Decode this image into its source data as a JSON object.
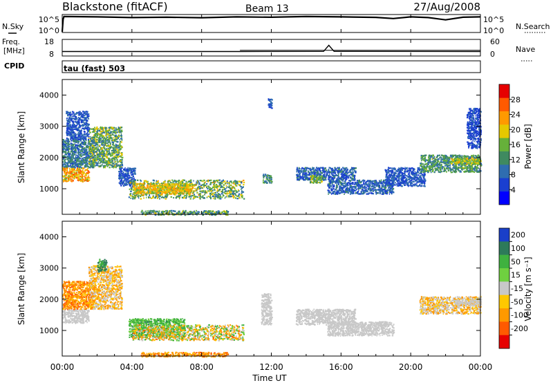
{
  "header": {
    "station": "Blackstone (fitACF)",
    "beam": "Beam 13",
    "date": "27/Aug/2008"
  },
  "top_panels": {
    "nsky_label": "N.Sky",
    "nsearch_label": "N.Search",
    "nsky_ticks": [
      "10^5",
      "10^0"
    ],
    "freq_label_1": "Freq.",
    "freq_label_2": "[MHz]",
    "freq_ticks": [
      "18",
      "8"
    ],
    "nave_label": "Nave",
    "nave_ticks": [
      "60",
      "0"
    ],
    "cpid_label": "CPID",
    "cpid_value": "tau (fast) 503"
  },
  "colors": {
    "power_scale": [
      "#0000ff",
      "#1a3fd0",
      "#2f6db0",
      "#3f8a60",
      "#66b03a",
      "#e6c800",
      "#ff9900",
      "#ff5a00",
      "#e60000"
    ],
    "velocity_scale": [
      "#1a3fc8",
      "#2d7a5a",
      "#3fb13f",
      "#6fd040",
      "#c8c8c8",
      "#ffc800",
      "#ff9900",
      "#ff5a00",
      "#e60000"
    ]
  },
  "chart_data": [
    {
      "type": "line",
      "name": "N.Sky / N.Search",
      "y_ticks": [
        "10^5",
        "10^0"
      ],
      "x": [
        0,
        0.05,
        0.1,
        2,
        4,
        6,
        8,
        10,
        12,
        14,
        16,
        18,
        19,
        20,
        21,
        22,
        23,
        24
      ],
      "values": [
        0.0,
        0.75,
        0.92,
        0.9,
        0.86,
        0.88,
        0.85,
        0.9,
        0.88,
        0.92,
        0.9,
        0.87,
        0.8,
        0.9,
        0.86,
        0.72,
        0.88,
        0.9
      ]
    },
    {
      "type": "line",
      "name": "Freq / Nave",
      "y_ticks_left": [
        "18",
        "8"
      ],
      "y_ticks_right": [
        "60",
        "0"
      ],
      "freq_x": [
        0,
        10,
        10.2,
        15,
        15.3,
        15.6,
        24
      ],
      "freq_mhz": [
        10.5,
        10.5,
        10.5,
        10.6,
        14.6,
        10.6,
        10.5
      ],
      "freq_step_x": [
        10.2,
        24
      ],
      "freq_step_mhz": [
        11.3,
        11.3
      ]
    },
    {
      "type": "heatmap",
      "title": "Power",
      "xlabel": "",
      "ylabel": "Slant Range [km]",
      "x_range_hours": [
        0,
        24
      ],
      "y_range_km": [
        180,
        4500
      ],
      "y_ticks": [
        1000,
        2000,
        3000,
        4000
      ],
      "colorbar_label": "Power [dB]",
      "colorbar_ticks": [
        4,
        8,
        12,
        16,
        20,
        24,
        28
      ],
      "colorbar_range": [
        0,
        32
      ],
      "regions": [
        {
          "t": [
            0.0,
            1.5
          ],
          "r": [
            1250,
            1700
          ],
          "p": [
            16,
            28
          ]
        },
        {
          "t": [
            0.0,
            1.8
          ],
          "r": [
            1700,
            2600
          ],
          "p": [
            6,
            14
          ]
        },
        {
          "t": [
            0.2,
            1.5
          ],
          "r": [
            2600,
            3500
          ],
          "p": [
            4,
            10
          ]
        },
        {
          "t": [
            1.5,
            3.4
          ],
          "r": [
            1700,
            3000
          ],
          "p": [
            8,
            20
          ]
        },
        {
          "t": [
            3.2,
            4.2
          ],
          "r": [
            1100,
            1700
          ],
          "p": [
            4,
            10
          ]
        },
        {
          "t": [
            3.8,
            10.4
          ],
          "r": [
            700,
            1300
          ],
          "p": [
            8,
            22
          ]
        },
        {
          "t": [
            4.0,
            7.5
          ],
          "r": [
            850,
            1200
          ],
          "p": [
            16,
            24
          ]
        },
        {
          "t": [
            4.5,
            9.5
          ],
          "r": [
            180,
            320
          ],
          "p": [
            8,
            20
          ]
        },
        {
          "t": [
            11.5,
            12.0
          ],
          "r": [
            1200,
            1500
          ],
          "p": [
            8,
            16
          ]
        },
        {
          "t": [
            11.8,
            12.0
          ],
          "r": [
            3600,
            3900
          ],
          "p": [
            4,
            10
          ]
        },
        {
          "t": [
            13.4,
            16.8
          ],
          "r": [
            1300,
            1700
          ],
          "p": [
            4,
            12
          ]
        },
        {
          "t": [
            14.2,
            14.9
          ],
          "r": [
            1200,
            1450
          ],
          "p": [
            12,
            20
          ]
        },
        {
          "t": [
            15.2,
            19.0
          ],
          "r": [
            850,
            1300
          ],
          "p": [
            4,
            12
          ]
        },
        {
          "t": [
            18.5,
            20.8
          ],
          "r": [
            1100,
            1700
          ],
          "p": [
            4,
            10
          ]
        },
        {
          "t": [
            20.5,
            24.0
          ],
          "r": [
            1550,
            2100
          ],
          "p": [
            8,
            18
          ]
        },
        {
          "t": [
            22.3,
            24.0
          ],
          "r": [
            1800,
            2000
          ],
          "p": [
            14,
            22
          ]
        },
        {
          "t": [
            23.2,
            24.0
          ],
          "r": [
            2300,
            3600
          ],
          "p": [
            4,
            8
          ]
        }
      ]
    },
    {
      "type": "heatmap",
      "title": "Velocity",
      "xlabel": "Time UT",
      "ylabel": "Slant Range [km]",
      "x_range_hours": [
        0,
        24
      ],
      "x_ticks": [
        "00:00",
        "04:00",
        "08:00",
        "12:00",
        "16:00",
        "20:00",
        "00:00"
      ],
      "y_range_km": [
        180,
        4500
      ],
      "y_ticks": [
        1000,
        2000,
        3000,
        4000
      ],
      "colorbar_label": "Velocity [m s⁻¹]",
      "colorbar_ticks": [
        200,
        100,
        50,
        15,
        -15,
        -50,
        -100,
        -200
      ],
      "regions": [
        {
          "t": [
            0.0,
            1.5
          ],
          "r": [
            1250,
            1700
          ],
          "v": [
            -15,
            15
          ]
        },
        {
          "t": [
            0.0,
            1.8
          ],
          "r": [
            1700,
            2600
          ],
          "v": [
            -100,
            -15
          ]
        },
        {
          "t": [
            1.5,
            3.4
          ],
          "r": [
            1700,
            3100
          ],
          "v": [
            -60,
            10
          ]
        },
        {
          "t": [
            2.0,
            2.5
          ],
          "r": [
            2900,
            3300
          ],
          "v": [
            30,
            150
          ]
        },
        {
          "t": [
            3.8,
            7.0
          ],
          "r": [
            800,
            1400
          ],
          "v": [
            15,
            80
          ]
        },
        {
          "t": [
            4.0,
            10.4
          ],
          "r": [
            700,
            1200
          ],
          "v": [
            -80,
            60
          ]
        },
        {
          "t": [
            4.5,
            9.5
          ],
          "r": [
            180,
            320
          ],
          "v": [
            -100,
            -15
          ]
        },
        {
          "t": [
            11.4,
            12.0
          ],
          "r": [
            1200,
            2200
          ],
          "v": [
            -15,
            15
          ]
        },
        {
          "t": [
            13.4,
            16.8
          ],
          "r": [
            1200,
            1700
          ],
          "v": [
            -15,
            15
          ]
        },
        {
          "t": [
            15.2,
            19.0
          ],
          "r": [
            850,
            1300
          ],
          "v": [
            -15,
            15
          ]
        },
        {
          "t": [
            20.5,
            24.0
          ],
          "r": [
            1550,
            2100
          ],
          "v": [
            -60,
            15
          ]
        },
        {
          "t": [
            22.5,
            24.0
          ],
          "r": [
            1800,
            2000
          ],
          "v": [
            -15,
            15
          ]
        }
      ]
    }
  ]
}
